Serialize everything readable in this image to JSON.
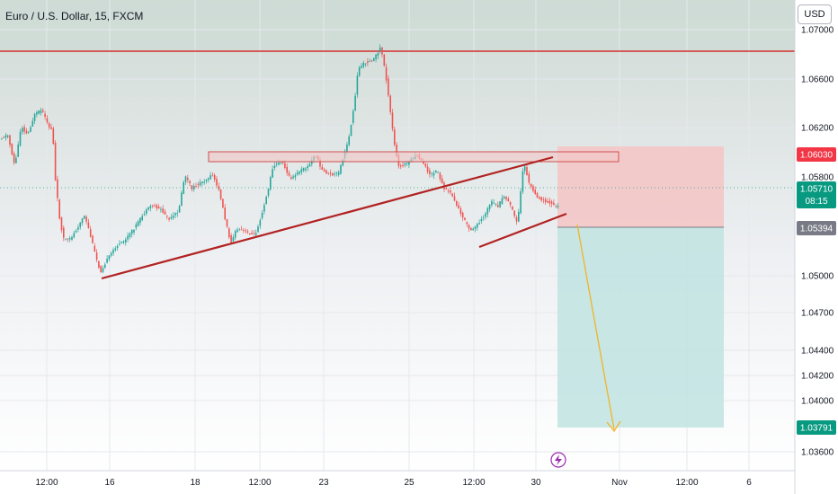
{
  "chart_data": {
    "type": "candlestick",
    "title": "Euro / U.S. Dollar, 15, FXCM",
    "currency_button": "USD",
    "y_ticks": [
      "1.07000",
      "1.06600",
      "1.06200",
      "1.05800",
      "1.05000",
      "1.04700",
      "1.04400",
      "1.04200",
      "1.04000",
      "1.03600"
    ],
    "x_ticks": [
      "12:00",
      "16",
      "18",
      "12:00",
      "23",
      "25",
      "12:00",
      "30",
      "Nov",
      "12:00",
      "6"
    ],
    "price_labels": [
      {
        "name": "stop-loss",
        "text": "1.06030",
        "color": "#f23645"
      },
      {
        "name": "current-price",
        "text": "1.05710",
        "sub": "08:15",
        "color": "#089981"
      },
      {
        "name": "entry",
        "text": "1.05394",
        "color": "#787b86"
      },
      {
        "name": "take-profit",
        "text": "1.03791",
        "color": "#089981"
      }
    ],
    "resistance_level": 1.0682,
    "short_position": {
      "entry": 1.05394,
      "stop": 1.0603,
      "target": 1.03791
    },
    "colors": {
      "up": "#26a69a",
      "down": "#ef5350",
      "trendline": "#b22222",
      "stop_zone": "#f5c4c4",
      "target_zone": "#bfe3e1",
      "arrow": "#f0b429",
      "resistance": "#d32f2f",
      "top_band": "#cfdcd6"
    }
  }
}
